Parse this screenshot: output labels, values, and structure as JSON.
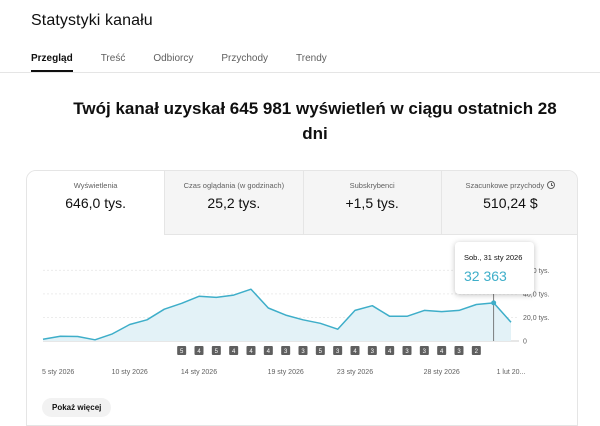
{
  "header": {
    "title": "Statystyki kanału"
  },
  "tabs": [
    {
      "label": "Przegląd",
      "active": true
    },
    {
      "label": "Treść",
      "active": false
    },
    {
      "label": "Odbiorcy",
      "active": false
    },
    {
      "label": "Przychody",
      "active": false
    },
    {
      "label": "Trendy",
      "active": false
    }
  ],
  "headline": "Twój kanał uzyskał 645 981 wyświetleń w ciągu ostatnich 28 dni",
  "metrics": [
    {
      "label": "Wyświetlenia",
      "value": "646,0 tys.",
      "selected": true
    },
    {
      "label": "Czas oglądania (w godzinach)",
      "value": "25,2 tys."
    },
    {
      "label": "Subskrybenci",
      "value": "+1,5 tys."
    },
    {
      "label": "Szacunkowe przychody",
      "value": "510,24 $",
      "icon": "clock-icon"
    }
  ],
  "tooltip": {
    "date": "Sob., 31 sty 2026",
    "value": "32 363"
  },
  "chart_data": {
    "type": "area",
    "series": [
      {
        "values": [
          1500,
          4000,
          3800,
          1000,
          6000,
          14000,
          18000,
          27000,
          32000,
          38000,
          37000,
          39000,
          44000,
          28000,
          22000,
          18000,
          15000,
          10000,
          26000,
          30000,
          21000,
          21000,
          26000,
          25000,
          26000,
          31000,
          32363,
          16000
        ]
      }
    ],
    "highlight_index": 26,
    "ylim": [
      0,
      62000
    ],
    "y_ticks": [
      {
        "value": 0,
        "label": "0"
      },
      {
        "value": 20000,
        "label": "20,0 tys."
      },
      {
        "value": 40000,
        "label": "40,0 tys."
      },
      {
        "value": 60000,
        "label": "60,0 tys."
      }
    ],
    "x_labels": [
      "5 sty 2026",
      "10 sty 2026",
      "14 sty 2026",
      "19 sty 2026",
      "23 sty 2026",
      "28 sty 2026",
      "1 lut 20..."
    ],
    "x_label_index": [
      0,
      5,
      9,
      14,
      18,
      23,
      27
    ],
    "upload_markers": [
      "5",
      "4",
      "5",
      "4",
      "4",
      "4",
      "3",
      "3",
      "5",
      "3",
      "4",
      "3",
      "4",
      "3",
      "3",
      "4",
      "3",
      "2"
    ],
    "marker_start_index": 8,
    "line_color": "#3eaec9",
    "fill_color": "#e3f2f7",
    "grid": true
  },
  "footer": {
    "more_label": "Pokaż więcej"
  }
}
